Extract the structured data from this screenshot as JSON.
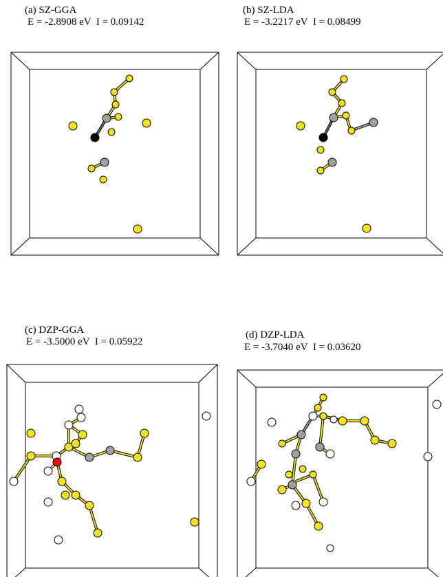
{
  "panels": [
    {
      "label": "(a) SZ-GGA",
      "energy": "E = -2.8908 eV  I = 0.09142"
    },
    {
      "label": "(b) SZ-LDA",
      "energy": "E = -3.2217 eV  I = 0.08499"
    },
    {
      "label": "(c) DZP-GGA",
      "energy": "E = -3.5000 eV  I = 0.05922"
    },
    {
      "label": "(d) DZP-LDA",
      "energy": "E = -3.7040 eV  I = 0.03620"
    }
  ],
  "colors": {
    "yellow": "#f5e11c",
    "gray": "#a0a0a0",
    "black": "#000000",
    "white": "#ffffff",
    "red": "#dd1111"
  }
}
